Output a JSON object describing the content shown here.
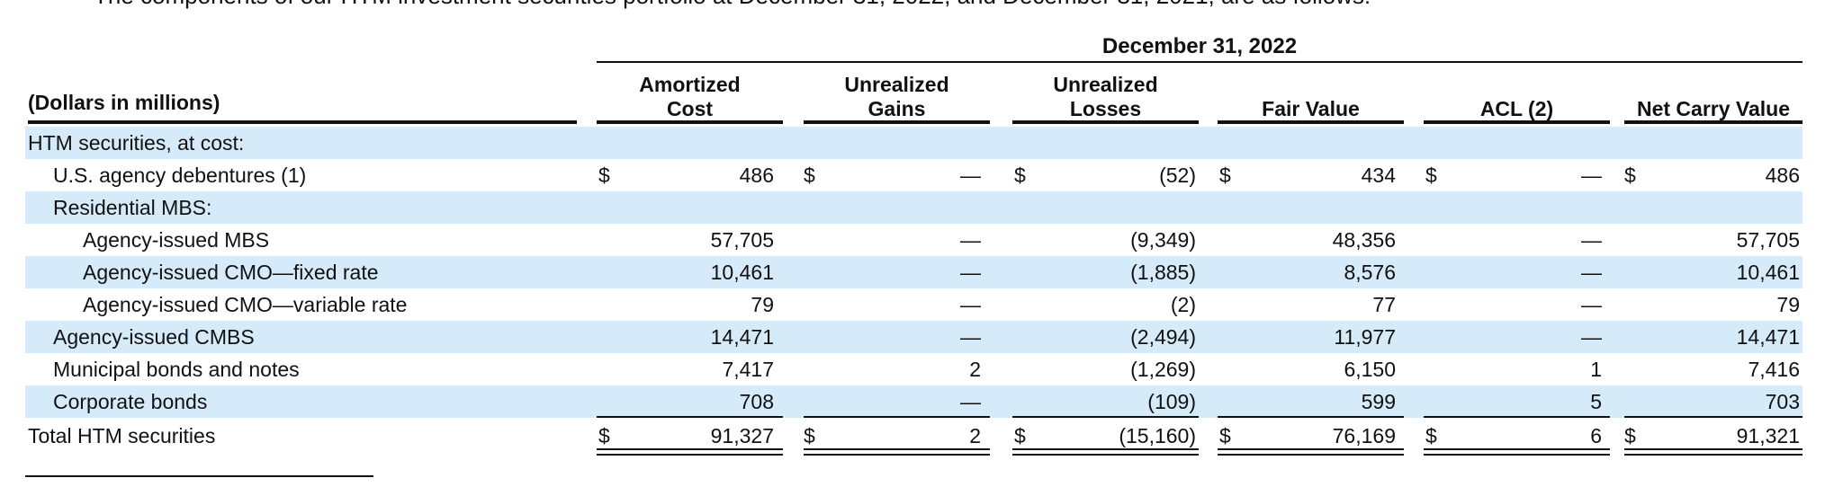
{
  "intro": "The components of our HTM investment securities portfolio at December 31, 2022, and December 31, 2021, are as follows:",
  "period_header": "December 31, 2022",
  "stub_header": "(Dollars in millions)",
  "columns": [
    {
      "label": "Amortized Cost"
    },
    {
      "label": "Unrealized Gains"
    },
    {
      "label": "Unrealized Losses"
    },
    {
      "label": "Fair Value"
    },
    {
      "label": "ACL (2)"
    },
    {
      "label": "Net Carry Value"
    }
  ],
  "currency_symbol": "$",
  "rows": [
    {
      "label": "HTM securities, at cost:",
      "values": [
        "",
        "",
        "",
        "",
        "",
        ""
      ]
    },
    {
      "label": "U.S. agency debentures (1)",
      "values": [
        "486",
        "—",
        "(52)",
        "434",
        "—",
        "486"
      ]
    },
    {
      "label": "Residential MBS:",
      "values": [
        "",
        "",
        "",
        "",
        "",
        ""
      ]
    },
    {
      "label": "Agency-issued MBS",
      "values": [
        "57,705",
        "—",
        "(9,349)",
        "48,356",
        "—",
        "57,705"
      ]
    },
    {
      "label": "Agency-issued CMO—fixed rate",
      "values": [
        "10,461",
        "—",
        "(1,885)",
        "8,576",
        "—",
        "10,461"
      ]
    },
    {
      "label": "Agency-issued CMO—variable rate",
      "values": [
        "79",
        "—",
        "(2)",
        "77",
        "—",
        "79"
      ]
    },
    {
      "label": "Agency-issued CMBS",
      "values": [
        "14,471",
        "—",
        "(2,494)",
        "11,977",
        "—",
        "14,471"
      ]
    },
    {
      "label": "Municipal bonds and notes",
      "values": [
        "7,417",
        "2",
        "(1,269)",
        "6,150",
        "1",
        "7,416"
      ]
    },
    {
      "label": "Corporate bonds",
      "values": [
        "708",
        "—",
        "(109)",
        "599",
        "5",
        "703"
      ]
    },
    {
      "label": "Total HTM securities",
      "values": [
        "91,327",
        "2",
        "(15,160)",
        "76,169",
        "6",
        "91,321"
      ]
    }
  ],
  "colors": {
    "row_shade": "#d6ebf9",
    "text": "#111111"
  }
}
